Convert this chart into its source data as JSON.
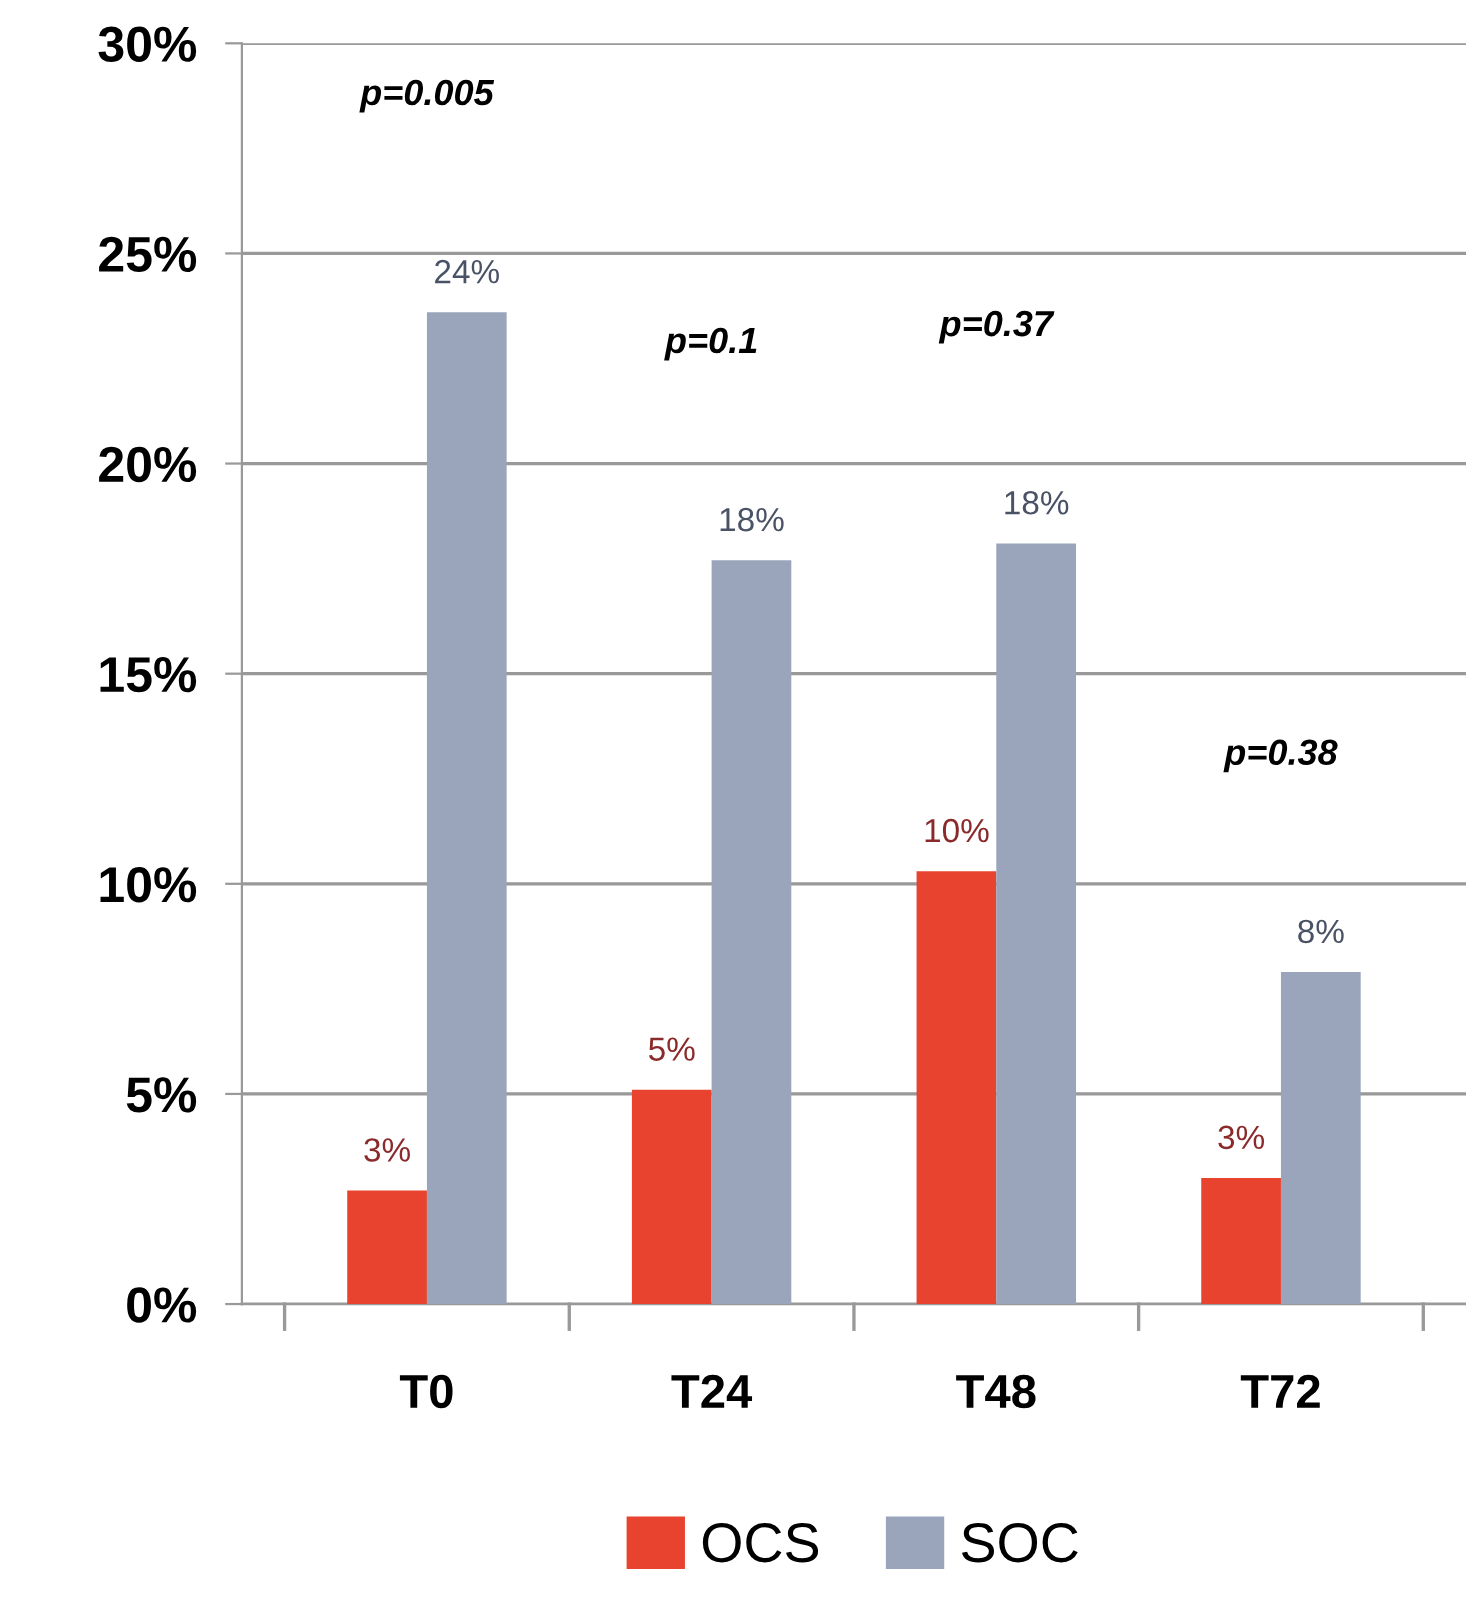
{
  "chart_data": {
    "type": "bar",
    "categories": [
      "T0",
      "T24",
      "T48",
      "T72"
    ],
    "series": [
      {
        "name": "OCS",
        "color": "#e8432f",
        "values": [
          2.7,
          5.1,
          10.3,
          3.0
        ],
        "value_labels": [
          "3%",
          "5%",
          "10%",
          "3%"
        ]
      },
      {
        "name": "SOC",
        "color": "#9aa5bb",
        "values": [
          23.6,
          17.7,
          18.1,
          7.9
        ],
        "value_labels": [
          "24%",
          "18%",
          "18%",
          "8%"
        ]
      }
    ],
    "ylim": [
      0,
      30
    ],
    "yticks": [
      {
        "value": 0,
        "label": "0%"
      },
      {
        "value": 5,
        "label": "5%"
      },
      {
        "value": 10,
        "label": "10%"
      },
      {
        "value": 15,
        "label": "15%"
      },
      {
        "value": 20,
        "label": "20%"
      },
      {
        "value": 25,
        "label": "25%"
      },
      {
        "value": 30,
        "label": "30%"
      }
    ],
    "grid": "y",
    "legend": "bottom",
    "annotations": [
      "p=0.005",
      "p=0.1",
      "p=0.37",
      "p=0.38"
    ]
  }
}
